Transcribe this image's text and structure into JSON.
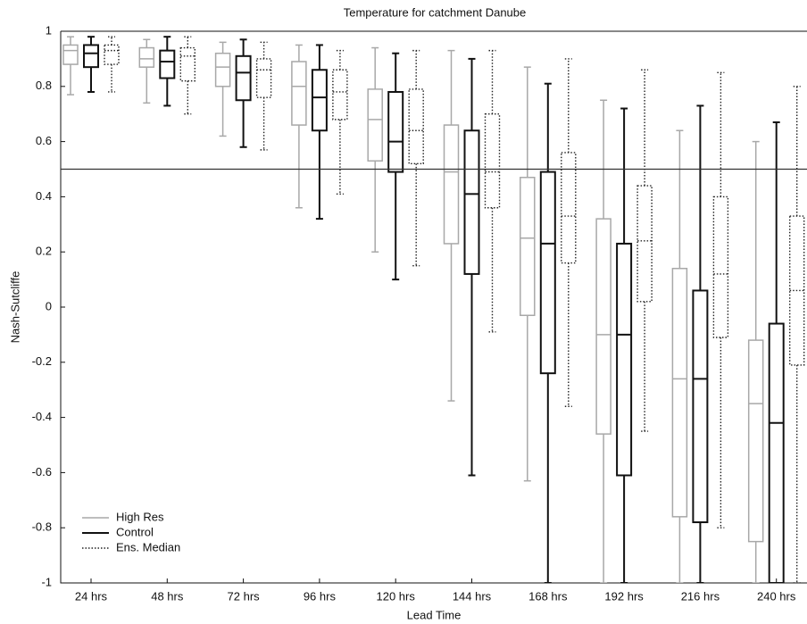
{
  "chart_data": {
    "type": "box",
    "title": "Temperature for catchment Danube",
    "x_label": "Lead Time",
    "y_label": "Nash-Sutcliffe",
    "categories": [
      "24 hrs",
      "48 hrs",
      "72 hrs",
      "96 hrs",
      "120 hrs",
      "144 hrs",
      "168 hrs",
      "192 hrs",
      "216 hrs",
      "240 hrs"
    ],
    "ylim": [
      -1,
      1
    ],
    "yticks": [
      -1,
      -0.8,
      -0.6,
      -0.4,
      -0.2,
      0,
      0.2,
      0.4,
      0.6,
      0.8,
      1
    ],
    "reference_line": 0.5,
    "legend_position": "lower left",
    "series": [
      {
        "name": "High Res",
        "color": "#a8a8a8",
        "line_style": "solid",
        "whislo": [
          0.77,
          0.74,
          0.62,
          0.36,
          0.2,
          -0.34,
          -0.63,
          -1,
          -1,
          -1
        ],
        "q1": [
          0.88,
          0.87,
          0.8,
          0.66,
          0.53,
          0.23,
          -0.03,
          -0.46,
          -0.76,
          -0.85
        ],
        "med": [
          0.93,
          0.9,
          0.87,
          0.8,
          0.68,
          0.49,
          0.25,
          -0.1,
          -0.26,
          -0.35
        ],
        "q3": [
          0.95,
          0.94,
          0.92,
          0.89,
          0.79,
          0.66,
          0.47,
          0.32,
          0.14,
          -0.12
        ],
        "whishi": [
          0.98,
          0.97,
          0.96,
          0.95,
          0.94,
          0.93,
          0.87,
          0.75,
          0.64,
          0.6
        ]
      },
      {
        "name": "Control",
        "color": "#111111",
        "line_style": "solid",
        "whislo": [
          0.78,
          0.73,
          0.58,
          0.32,
          0.1,
          -0.61,
          -1,
          -1,
          -1,
          -1
        ],
        "q1": [
          0.87,
          0.83,
          0.75,
          0.64,
          0.49,
          0.12,
          -0.24,
          -0.61,
          -0.78,
          -1
        ],
        "med": [
          0.92,
          0.89,
          0.85,
          0.76,
          0.6,
          0.41,
          0.23,
          -0.1,
          -0.26,
          -0.42
        ],
        "q3": [
          0.95,
          0.93,
          0.91,
          0.86,
          0.78,
          0.64,
          0.49,
          0.23,
          0.06,
          -0.06
        ],
        "whishi": [
          0.98,
          0.98,
          0.97,
          0.95,
          0.92,
          0.9,
          0.81,
          0.72,
          0.73,
          0.67
        ]
      },
      {
        "name": "Ens. Median",
        "color": "#222222",
        "line_style": "dotted",
        "whislo": [
          0.78,
          0.7,
          0.57,
          0.41,
          0.15,
          -0.09,
          -0.36,
          -0.45,
          -0.8,
          -1
        ],
        "q1": [
          0.88,
          0.82,
          0.76,
          0.68,
          0.52,
          0.36,
          0.16,
          0.02,
          -0.11,
          -0.21
        ],
        "med": [
          0.93,
          0.91,
          0.86,
          0.78,
          0.64,
          0.49,
          0.33,
          0.24,
          0.12,
          0.06
        ],
        "q3": [
          0.95,
          0.94,
          0.9,
          0.86,
          0.79,
          0.7,
          0.56,
          0.44,
          0.4,
          0.33
        ],
        "whishi": [
          0.98,
          0.98,
          0.96,
          0.93,
          0.93,
          0.93,
          0.9,
          0.86,
          0.85,
          0.8
        ]
      }
    ]
  }
}
